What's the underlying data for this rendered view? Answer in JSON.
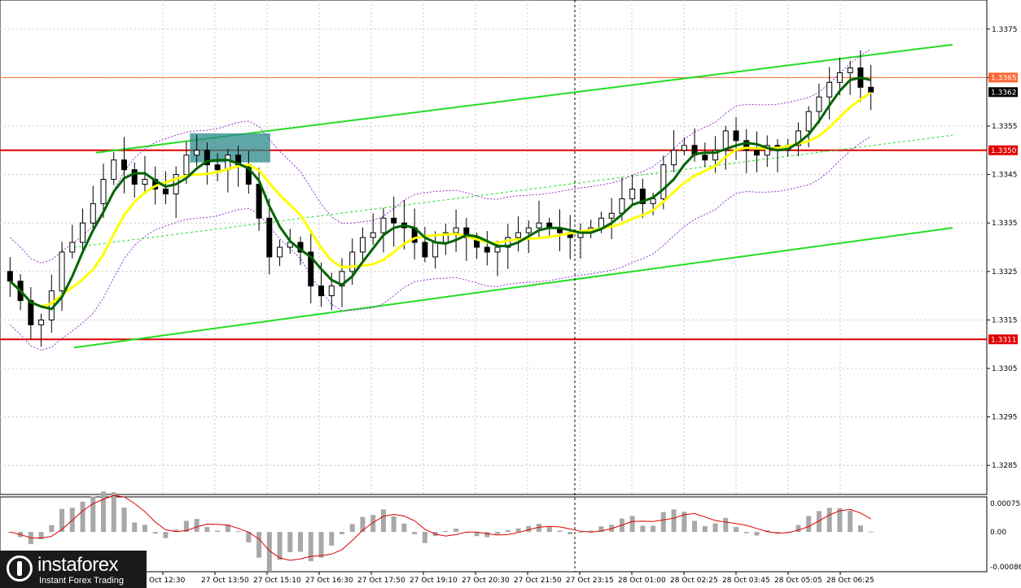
{
  "chart_data": {
    "type": "candlestick",
    "price_axis": {
      "ylim": [
        1.3279,
        1.3381
      ],
      "ticks": [
        "1.3375",
        "1.3365",
        "1.3355",
        "1.3345",
        "1.3335",
        "1.3325",
        "1.3315",
        "1.3305",
        "1.3295",
        "1.3285"
      ]
    },
    "time_axis": {
      "labels": [
        "Oct 12:30",
        "27 Oct 13:50",
        "27 Oct 15:10",
        "27 Oct 16:30",
        "27 Oct 17:50",
        "27 Oct 19:10",
        "27 Oct 20:30",
        "27 Oct 21:50",
        "27 Oct 23:15",
        "28 Oct 01:00",
        "28 Oct 02:25",
        "28 Oct 03:45",
        "28 Oct 05:05",
        "28 Oct 06:25"
      ]
    },
    "price_tags": {
      "level_top": "1.3365",
      "current": "1.3362",
      "level_mid": "1.3350",
      "level_low": "1.3311"
    },
    "horizontal_levels": [
      {
        "price": 1.3365,
        "color": "#ff6633",
        "style": "thin"
      },
      {
        "price": 1.335,
        "color": "#e00000",
        "style": "thick"
      },
      {
        "price": 1.3311,
        "color": "#e00000",
        "style": "thick"
      }
    ],
    "trend_channel": {
      "upper": [
        [
          0.11,
          1.33495
        ],
        [
          1.0,
          1.33718
        ]
      ],
      "lower": [
        [
          0.085,
          1.33093
        ],
        [
          1.0,
          1.3334
        ]
      ],
      "median": [
        [
          0.085,
          1.333
        ],
        [
          1.0,
          1.33531
        ]
      ]
    },
    "highlight_box": {
      "x_from": 0.19,
      "x_to": 0.27,
      "price_from": 1.33475,
      "price_to": 1.33535,
      "color": "#2a8a8a"
    },
    "vertical_cursor": {
      "x": 0.583
    },
    "close_series": [
      1.3323,
      1.3319,
      1.3314,
      1.3315,
      1.3321,
      1.3329,
      1.3331,
      1.3335,
      1.3339,
      1.3344,
      1.3348,
      1.3346,
      1.3343,
      1.3344,
      1.3342,
      1.3341,
      1.3345,
      1.3349,
      1.335,
      1.3347,
      1.3346,
      1.3349,
      1.3347,
      1.3343,
      1.3336,
      1.3328,
      1.333,
      1.3331,
      1.3329,
      1.3322,
      1.332,
      1.3322,
      1.3325,
      1.3329,
      1.3332,
      1.3333,
      1.3336,
      1.3335,
      1.3334,
      1.3331,
      1.3328,
      1.3331,
      1.3333,
      1.3334,
      1.3332,
      1.333,
      1.3329,
      1.333,
      1.3332,
      1.3333,
      1.3334,
      1.3335,
      1.3334,
      1.3333,
      1.3332,
      1.3333,
      1.3334,
      1.3336,
      1.3337,
      1.334,
      1.3342,
      1.3339,
      1.334,
      1.3347,
      1.335,
      1.3351,
      1.3349,
      1.3348,
      1.335,
      1.3354,
      1.3352,
      1.335,
      1.3349,
      1.3351,
      1.335,
      1.3351,
      1.3354,
      1.3358,
      1.3361,
      1.3364,
      1.3366,
      1.3367,
      1.3363,
      1.3362
    ],
    "ma_fast_color": "#006400",
    "ma_slow_color": "#ffff00",
    "oscillator": {
      "ticks": [
        "0.00075",
        "0.00",
        "-0.00086"
      ],
      "ylim": [
        -0.00086,
        0.00075
      ]
    }
  },
  "logo": {
    "brand": "instaforex",
    "tagline": "Instant Forex Trading"
  }
}
